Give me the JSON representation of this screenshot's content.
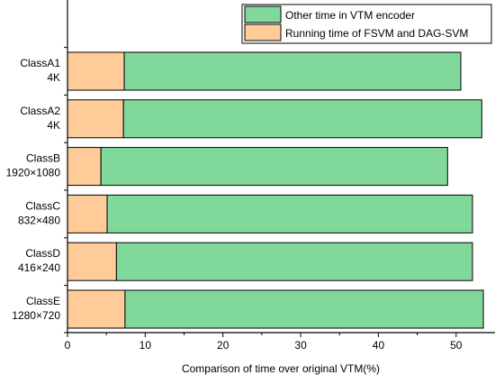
{
  "chart_data": {
    "type": "bar",
    "orientation": "horizontal",
    "stacked": true,
    "categories": [
      [
        "ClassA1",
        "4K"
      ],
      [
        "ClassA2",
        "4K"
      ],
      [
        "ClassB",
        "1920×1080"
      ],
      [
        "ClassC",
        "832×480"
      ],
      [
        "ClassD",
        "416×240"
      ],
      [
        "ClassE",
        "1280×720"
      ]
    ],
    "series": [
      {
        "name": "Running time of FSVM and DAG-SVM",
        "color": "#ffcc99",
        "values": [
          7.3,
          7.2,
          4.3,
          5.1,
          6.3,
          7.4
        ]
      },
      {
        "name": "Other time in VTM encoder",
        "color": "#80d99b",
        "values": [
          43.3,
          46.1,
          44.6,
          47.0,
          45.8,
          46.1
        ]
      }
    ],
    "xlabel": "Comparison of time over original VTM(%)",
    "xlim": [
      0,
      55
    ],
    "xticks": [
      "0",
      "10",
      "20",
      "30",
      "40",
      "50"
    ],
    "xtick_values": [
      0,
      10,
      20,
      30,
      40,
      50
    ],
    "grid": false,
    "legend_position": "top-right",
    "legend_order": [
      1,
      0
    ]
  }
}
